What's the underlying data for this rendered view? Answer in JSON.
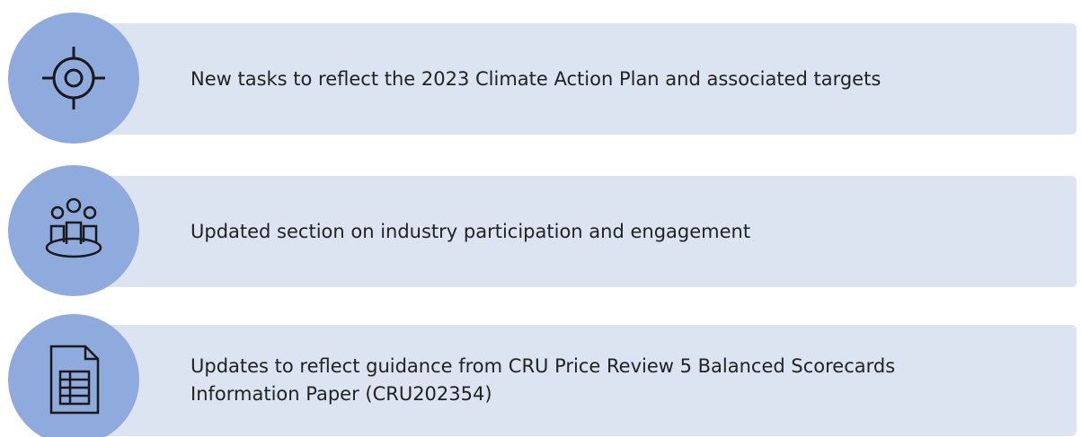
{
  "items": [
    {
      "text": "New tasks to reflect the 2023 Climate Action Plan and associated targets"
    },
    {
      "text": "Updated section on industry participation and engagement"
    },
    {
      "text": "Updates to reflect guidance from CRU Price Review 5 Balanced Scorecards Information Paper (CRU202354)"
    }
  ]
}
